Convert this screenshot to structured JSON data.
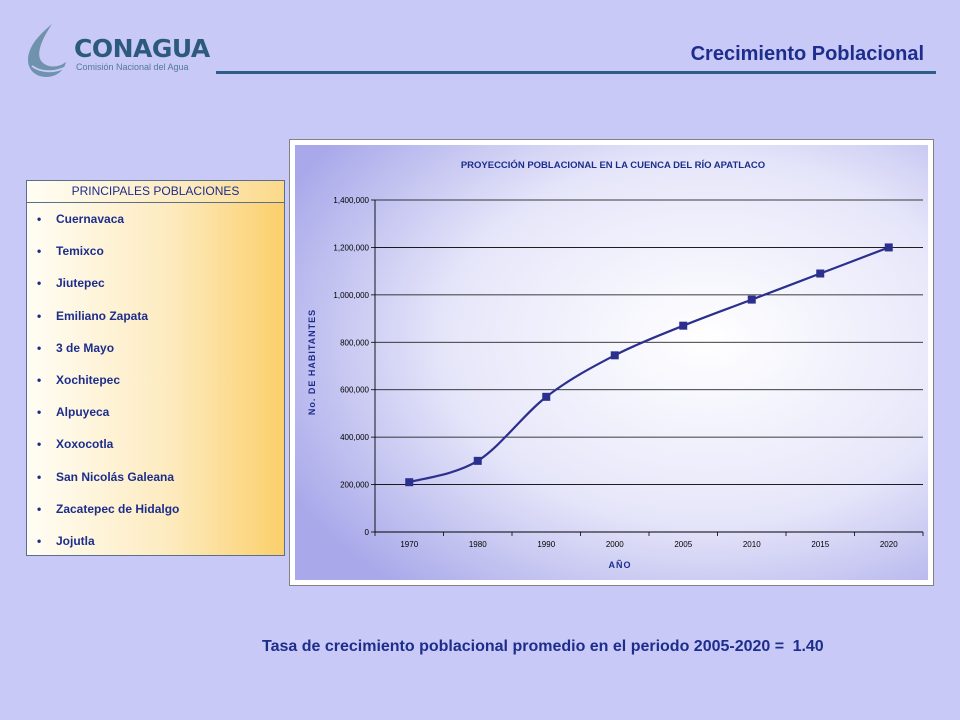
{
  "brand": {
    "name": "CONAGUA",
    "subtitle": "Comisión Nacional del Agua",
    "colors": {
      "primary": "#2c5a7d",
      "title": "#1d2d8c",
      "background": "#c9c9f7",
      "series": "#2b2f8e"
    }
  },
  "page": {
    "title": "Crecimiento Poblacional"
  },
  "panel": {
    "heading": "PRINCIPALES POBLACIONES",
    "items": [
      "Cuernavaca",
      "Temixco",
      "Jiutepec",
      "Emiliano Zapata",
      "3 de Mayo",
      "Xochitepec",
      "Alpuyeca",
      "Xoxocotla",
      "San Nicolás Galeana",
      "Zacatepec de Hidalgo",
      "Jojutla"
    ]
  },
  "chart_data": {
    "type": "line",
    "title": "PROYECCIÓN POBLACIONAL EN LA CUENCA DEL RÍO APATLACO",
    "xlabel": "AÑO",
    "ylabel": "No. DE HABITANTES",
    "categories": [
      "1970",
      "1980",
      "1990",
      "2000",
      "2005",
      "2010",
      "2015",
      "2020"
    ],
    "series": [
      {
        "values": [
          210000,
          300000,
          570000,
          745000,
          870000,
          980000,
          1090000,
          1200000
        ]
      }
    ],
    "ylim": [
      0,
      1400000
    ],
    "yticks": [
      0,
      200000,
      400000,
      600000,
      800000,
      1000000,
      1200000,
      1400000
    ],
    "ytick_labels": [
      "0",
      "200,000",
      "400,000",
      "600,000",
      "800,000",
      "1,000,000",
      "1,200,000",
      "1,400,000"
    ],
    "grid": true,
    "legend": "none"
  },
  "footer": {
    "text": "Tasa de crecimiento poblacional promedio en el periodo 2005-2020 =",
    "value": "1.40"
  }
}
